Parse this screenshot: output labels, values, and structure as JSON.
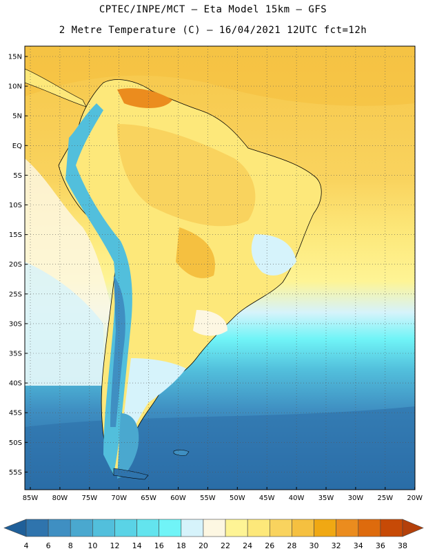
{
  "header": {
    "line1": "CPTEC/INPE/MCT –  Eta Model 15km – GFS",
    "line2": "2 Metre Temperature (C) – 16/04/2021 12UTC fct=12h"
  },
  "map": {
    "lat_labels": [
      "15N",
      "10N",
      "5N",
      "EQ",
      "5S",
      "10S",
      "15S",
      "20S",
      "25S",
      "30S",
      "35S",
      "40S",
      "45S",
      "50S",
      "55S"
    ],
    "lon_labels": [
      "85W",
      "80W",
      "75W",
      "70W",
      "65W",
      "60W",
      "55W",
      "50W",
      "45W",
      "40W",
      "35W",
      "30W",
      "25W",
      "20W"
    ]
  },
  "colorbar": {
    "labels": [
      "4",
      "6",
      "8",
      "10",
      "12",
      "14",
      "16",
      "18",
      "20",
      "22",
      "24",
      "26",
      "28",
      "30",
      "32",
      "34",
      "36",
      "38"
    ],
    "colors": [
      "#1f5f99",
      "#2f74ad",
      "#3f8fc2",
      "#4aa8cf",
      "#52bfdc",
      "#5ad3e6",
      "#63e4ee",
      "#70f4f7",
      "#d6f3fb",
      "#fdf7e2",
      "#fef495",
      "#fde87a",
      "#f9d35e",
      "#f5c040",
      "#f0a813",
      "#eb8c1e",
      "#de6b0d",
      "#c74a06",
      "#b4400a"
    ]
  }
}
